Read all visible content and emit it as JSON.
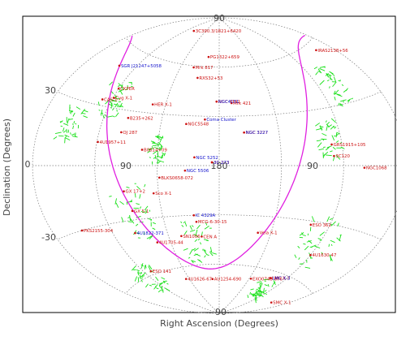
{
  "chart_data": {
    "type": "scatter",
    "projection": "aitoff",
    "xlabel": "Right Ascension (Degrees)",
    "ylabel": "Declination (Degrees)",
    "xlim": [
      360,
      0
    ],
    "ylim": [
      -90,
      90
    ],
    "grid": true,
    "tick_labels": [
      {
        "label": "90",
        "ra": 270,
        "dec": 0
      },
      {
        "label": "180",
        "ra": 180,
        "dec": 0
      },
      {
        "label": "90",
        "ra": 90,
        "dec": 0
      },
      {
        "label": "0",
        "ra": 360,
        "dec": 0
      },
      {
        "label": "30",
        "ra": 360,
        "dec": 30
      },
      {
        "label": "-30",
        "ra": 360,
        "dec": -30
      },
      {
        "label": "90",
        "ra": 180,
        "dec": 90
      },
      {
        "label": "-90",
        "ra": 180,
        "dec": -90
      }
    ],
    "colors": {
      "border": "#000000",
      "grid": "#7a7a7a",
      "galactic_plane": "#e020e0",
      "coverage": "#18e018",
      "agn_label": "#cc1111",
      "galaxy_label": "#1111cc",
      "marker": "#cc1111"
    },
    "series": [
      {
        "color": "#cc1111",
        "points": [
          {
            "label": "3C390.3/1821+6420",
            "ra": 280,
            "dec": 79
          },
          {
            "label": "Mrk 817",
            "ra": 220,
            "dec": 59
          },
          {
            "label": "PG1322+659",
            "ra": 200,
            "dec": 66
          },
          {
            "label": "RXS32+53",
            "ra": 210,
            "dec": 53
          },
          {
            "label": "CKPER",
            "ra": 300,
            "dec": 40
          },
          {
            "label": "CAS-1",
            "ra": 310,
            "dec": 33
          },
          {
            "label": "NGC5548",
            "ra": 214,
            "dec": 25
          },
          {
            "label": "B235+262",
            "ra": 275,
            "dec": 26
          },
          {
            "label": "OJ 287",
            "ra": 278,
            "dec": 18
          },
          {
            "label": "B0614+09",
            "ra": 255,
            "dec": 9
          },
          {
            "label": "3C 273",
            "ra": 187,
            "dec": 2
          },
          {
            "label": "BLKS0658-072",
            "ra": 238,
            "dec": -7
          },
          {
            "label": "NGC 3227",
            "ra": 155,
            "dec": 20
          },
          {
            "label": "Mrk 421",
            "ra": 166,
            "dec": 38
          },
          {
            "label": "IRAS2138+56",
            "ra": 20,
            "dec": 56
          },
          {
            "label": "GRS1915+105",
            "ra": 70,
            "dec": 11
          },
          {
            "label": "4U1630-47",
            "ra": 60,
            "dec": -47
          },
          {
            "label": "SN1006",
            "ra": 225,
            "dec": -42
          },
          {
            "label": "NGC1068",
            "ra": 40,
            "dec": -1
          },
          {
            "label": "MCG-6-30-15",
            "ra": 205,
            "dec": -34
          },
          {
            "label": "CEN A",
            "ra": 201,
            "dec": -43
          },
          {
            "label": "PKS2155-304",
            "ra": 330,
            "dec": -30
          },
          {
            "label": "ESO 141",
            "ra": 290,
            "dec": -58
          },
          {
            "label": "AU1254-690",
            "ra": 194,
            "dec": -69
          },
          {
            "label": "4U1626-67",
            "ra": 246,
            "dec": -67
          },
          {
            "label": "LMC X-3",
            "ra": 85,
            "dec": -64
          },
          {
            "label": "3C120",
            "ra": 69,
            "dec": 5
          },
          {
            "label": "ESO 362",
            "ra": 80,
            "dec": -32
          },
          {
            "label": "Vela X-1",
            "ra": 135,
            "dec": -40
          },
          {
            "label": "SMC X-1",
            "ra": 20,
            "dec": -73
          },
          {
            "label": "HER X-1",
            "ra": 254,
            "dec": 35
          },
          {
            "label": "EXO0748-676",
            "ra": 117,
            "dec": -67
          },
          {
            "label": "NGC 4151",
            "ra": 183,
            "dec": 39
          },
          {
            "label": "4U1957+11",
            "ra": 299,
            "dec": 12
          },
          {
            "label": "Cyg X-1",
            "ra": 299,
            "dec": 35
          },
          {
            "label": "4U1705-44",
            "ra": 256,
            "dec": -44
          },
          {
            "label": "Sco X-1",
            "ra": 245,
            "dec": -16
          },
          {
            "label": "GX 17+2",
            "ra": 274,
            "dec": -14
          },
          {
            "label": "GX 5-1",
            "ra": 270,
            "dec": -25
          }
        ]
      },
      {
        "color": "#1111cc",
        "points": [
          {
            "label": "NGC4151",
            "ra": 183,
            "dec": 39
          },
          {
            "label": "Coma Cluster",
            "ra": 195,
            "dec": 28
          },
          {
            "label": "NGC 3227",
            "ra": 155,
            "dec": 20
          },
          {
            "label": "NGC 5252",
            "ra": 204,
            "dec": 5
          },
          {
            "label": "NGC 5506",
            "ra": 213,
            "dec": -3
          },
          {
            "label": "3C 273",
            "ra": 187,
            "dec": 2
          },
          {
            "label": "SGR J21247+5058",
            "ra": 321,
            "dec": 50
          },
          {
            "label": "IC 4329A",
            "ra": 207,
            "dec": -30
          },
          {
            "label": "LMC X-3",
            "ra": 84,
            "dec": -64
          },
          {
            "label": "4U1822-371",
            "ra": 276,
            "dec": -37
          }
        ]
      }
    ]
  }
}
